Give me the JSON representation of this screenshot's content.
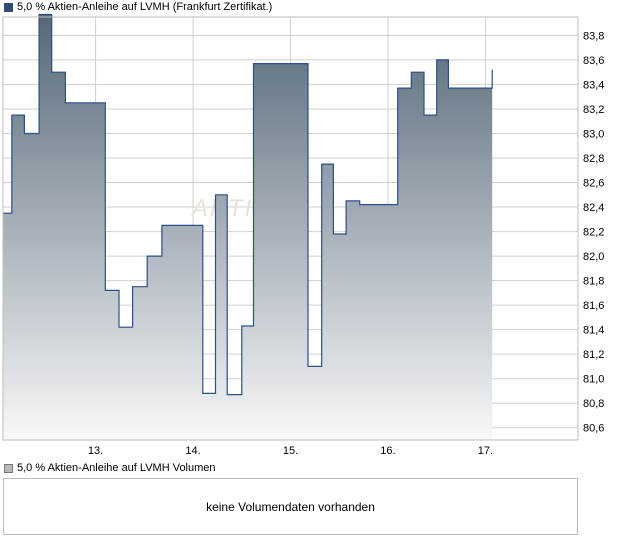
{
  "legend": {
    "price_label": "5,0 % Aktien-Anleihe auf LVMH  (Frankfurt Zertifikat.)",
    "volume_label": "5,0 % Aktien-Anleihe auf LVMH  Volumen"
  },
  "volume_panel": {
    "message": "keine Volumendaten vorhanden"
  },
  "watermark": "AKTIEN",
  "colors": {
    "line": "#2b4f8a",
    "fill_top": "#566878",
    "fill_bottom": "#f7f8f9",
    "grid": "#d0d0d0",
    "frame": "#bdbdbd"
  },
  "chart_data": {
    "type": "area",
    "title": "5,0 % Aktien-Anleihe auf LVMH  (Frankfurt Zertifikat.)",
    "xlabel": "",
    "ylabel": "",
    "grid": true,
    "step": true,
    "ylim": [
      80.5,
      83.95
    ],
    "xlim": [
      12.05,
      17.95
    ],
    "y_ticks": [
      80.6,
      80.8,
      81.0,
      81.2,
      81.4,
      81.6,
      81.8,
      82.0,
      82.2,
      82.4,
      82.6,
      82.8,
      83.0,
      83.2,
      83.4,
      83.6,
      83.8
    ],
    "y_tick_labels": [
      "80,6",
      "80,8",
      "81,0",
      "81,2",
      "81,4",
      "81,6",
      "81,8",
      "82,0",
      "82,2",
      "82,4",
      "82,6",
      "82,8",
      "83,0",
      "83,2",
      "83,4",
      "83,6",
      "83,8"
    ],
    "x_ticks": [
      13,
      14,
      15,
      16,
      17
    ],
    "x_tick_labels": [
      "13.",
      "14.",
      "15.",
      "16.",
      "17."
    ],
    "series": [
      {
        "x": [
          12.05,
          12.14,
          12.27,
          12.42,
          12.55,
          12.69,
          13.1,
          13.24,
          13.38,
          13.53,
          13.68,
          14.1,
          14.23,
          14.35,
          14.5,
          14.62,
          14.76,
          15.18,
          15.32,
          15.44,
          15.57,
          15.71,
          16.1,
          16.24,
          16.37,
          16.5,
          16.62,
          16.74,
          16.86,
          17.07
        ],
        "y": [
          82.35,
          83.15,
          83.0,
          83.97,
          83.5,
          83.25,
          81.72,
          81.42,
          81.75,
          82.0,
          82.25,
          80.88,
          82.5,
          80.87,
          81.43,
          83.57,
          83.57,
          81.1,
          82.75,
          82.18,
          82.45,
          82.42,
          83.37,
          83.5,
          83.15,
          83.6,
          83.37,
          83.37,
          83.37,
          83.52
        ]
      }
    ]
  }
}
